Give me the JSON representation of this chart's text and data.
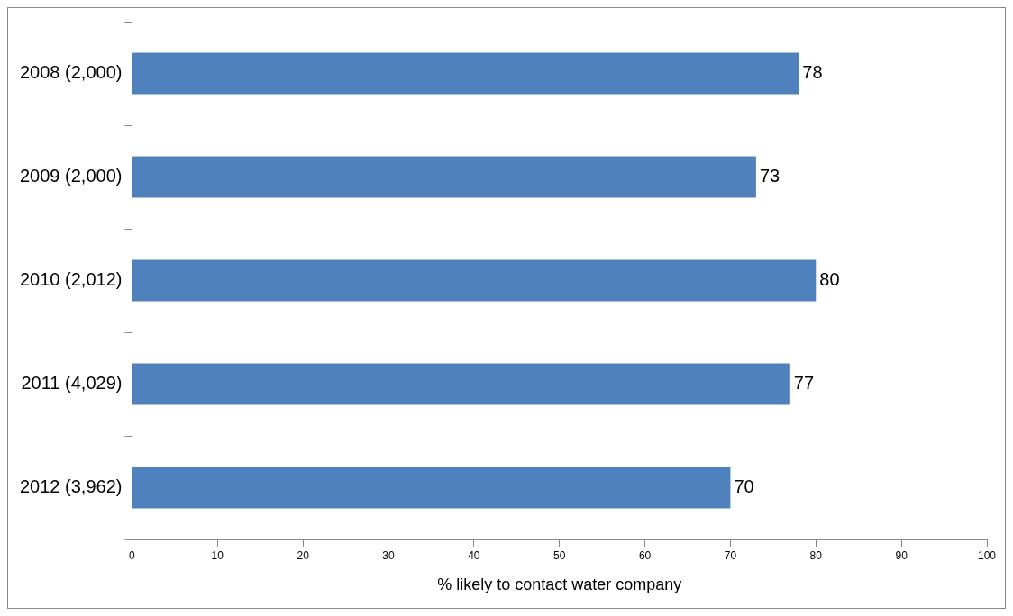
{
  "chart_data": {
    "type": "bar",
    "orientation": "horizontal",
    "xlabel": "% likely to contact water company",
    "categories": [
      "2008 (2,000)",
      "2009 (2,000)",
      "2010 (2,012)",
      "2011 (4,029)",
      "2012 (3,962)"
    ],
    "values": [
      78,
      73,
      80,
      77,
      70
    ],
    "color": "#4f81bd",
    "xlim": [
      0,
      100
    ],
    "xticks": [
      0,
      10,
      20,
      30,
      40,
      50,
      60,
      70,
      80,
      90,
      100
    ],
    "data_labels": true,
    "grid": false,
    "legend": false
  }
}
